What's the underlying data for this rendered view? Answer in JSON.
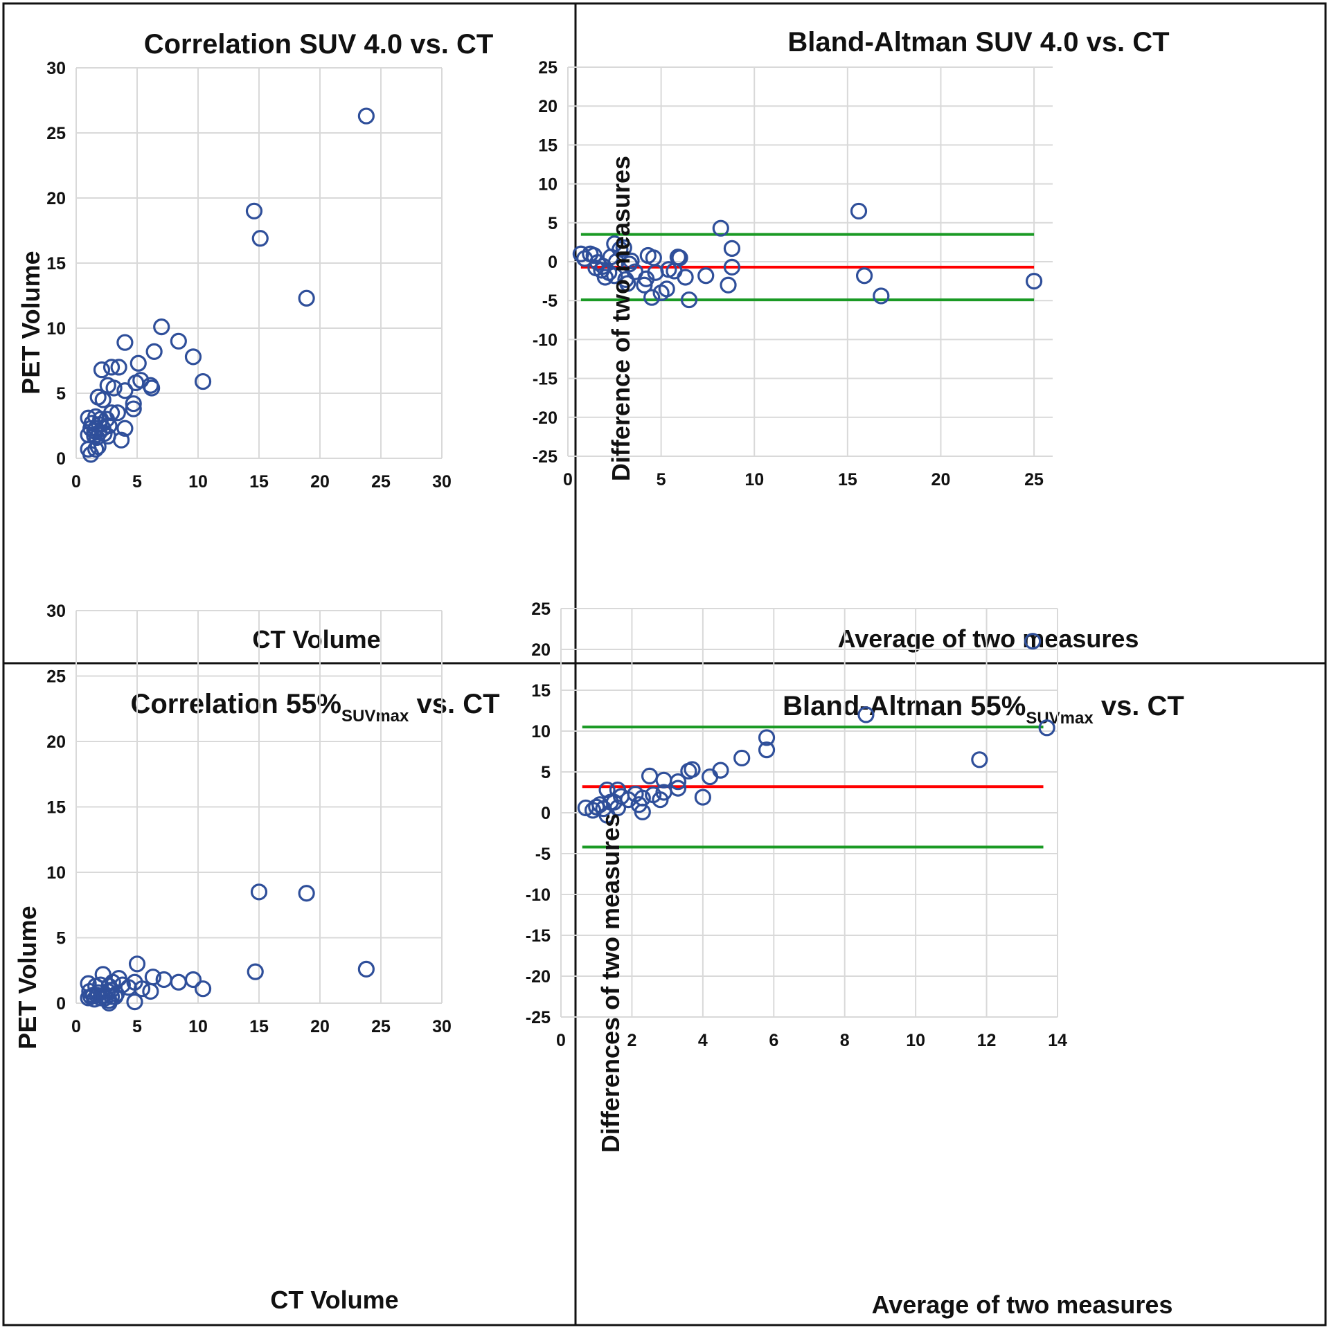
{
  "figure": {
    "background": "#ffffff",
    "marker_color": "#2f4f9a",
    "mean_color": "#ff0000",
    "loa_color": "#1a9a24"
  },
  "chart_data": [
    {
      "type": "scatter",
      "title": "Correlation SUV 4.0 vs. CT",
      "xlabel": "CT Volume",
      "ylabel": "PET Volume",
      "xlim": [
        0,
        30
      ],
      "ylim": [
        0,
        30
      ],
      "xticks": [
        "0",
        "5",
        "10",
        "15",
        "20",
        "25",
        "30"
      ],
      "yticks": [
        "0",
        "5",
        "10",
        "15",
        "20",
        "25",
        "30"
      ],
      "points": [
        [
          23.8,
          26.3
        ],
        [
          14.6,
          19.0
        ],
        [
          15.1,
          16.9
        ],
        [
          18.9,
          12.3
        ],
        [
          7.0,
          10.1
        ],
        [
          8.4,
          9.0
        ],
        [
          4.0,
          8.9
        ],
        [
          9.6,
          7.8
        ],
        [
          6.4,
          8.2
        ],
        [
          5.1,
          7.3
        ],
        [
          2.1,
          6.8
        ],
        [
          2.9,
          7.0
        ],
        [
          3.5,
          7.0
        ],
        [
          10.4,
          5.9
        ],
        [
          6.1,
          5.6
        ],
        [
          6.2,
          5.4
        ],
        [
          5.3,
          6.0
        ],
        [
          4.9,
          5.8
        ],
        [
          2.6,
          5.6
        ],
        [
          3.1,
          5.4
        ],
        [
          4.0,
          5.2
        ],
        [
          1.8,
          4.7
        ],
        [
          2.2,
          4.5
        ],
        [
          4.7,
          4.2
        ],
        [
          4.7,
          3.8
        ],
        [
          2.9,
          3.5
        ],
        [
          3.4,
          3.5
        ],
        [
          1.0,
          3.1
        ],
        [
          1.6,
          3.2
        ],
        [
          2.0,
          3.0
        ],
        [
          2.5,
          3.0
        ],
        [
          1.3,
          2.7
        ],
        [
          1.9,
          2.6
        ],
        [
          1.2,
          2.3
        ],
        [
          1.6,
          2.3
        ],
        [
          2.2,
          2.3
        ],
        [
          2.7,
          2.5
        ],
        [
          4.0,
          2.3
        ],
        [
          1.5,
          2.1
        ],
        [
          1.9,
          2.0
        ],
        [
          2.3,
          1.9
        ],
        [
          1.0,
          1.8
        ],
        [
          1.5,
          1.7
        ],
        [
          1.7,
          1.6
        ],
        [
          2.6,
          1.7
        ],
        [
          3.7,
          1.4
        ],
        [
          1.8,
          0.9
        ],
        [
          1.6,
          0.7
        ],
        [
          1.0,
          0.7
        ],
        [
          1.2,
          0.3
        ]
      ]
    },
    {
      "type": "scatter",
      "subtype": "bland-altman",
      "title": "Bland-Altman SUV 4.0 vs. CT",
      "xlabel": "Average of two measures",
      "ylabel": "Difference of two measures",
      "xlim": [
        0,
        26
      ],
      "ylim": [
        -25,
        25
      ],
      "xticks": [
        "0",
        "5",
        "10",
        "15",
        "20",
        "25"
      ],
      "yticks": [
        "25",
        "20",
        "15",
        "10",
        "5",
        "0",
        "-5",
        "-10",
        "-15",
        "-20",
        "-25"
      ],
      "mean_difference": -0.7,
      "limits_of_agreement": [
        3.5,
        -4.9
      ],
      "lines_x_range": [
        0.7,
        25.0
      ],
      "points": [
        [
          0.7,
          1.0
        ],
        [
          0.9,
          0.4
        ],
        [
          1.2,
          1.0
        ],
        [
          1.4,
          0.8
        ],
        [
          1.6,
          -0.1
        ],
        [
          1.5,
          -0.8
        ],
        [
          1.8,
          -1.1
        ],
        [
          1.9,
          -0.6
        ],
        [
          2.0,
          -2.0
        ],
        [
          2.2,
          -1.4
        ],
        [
          2.3,
          0.6
        ],
        [
          2.5,
          -1.8
        ],
        [
          2.5,
          2.3
        ],
        [
          2.6,
          0.0
        ],
        [
          2.8,
          1.6
        ],
        [
          3.0,
          1.8
        ],
        [
          3.1,
          -2.3
        ],
        [
          3.2,
          -2.8
        ],
        [
          3.3,
          -0.3
        ],
        [
          3.4,
          0.1
        ],
        [
          3.6,
          -1.3
        ],
        [
          4.1,
          -3.0
        ],
        [
          4.2,
          -2.2
        ],
        [
          4.3,
          0.8
        ],
        [
          4.5,
          -4.6
        ],
        [
          4.6,
          0.5
        ],
        [
          4.7,
          -1.4
        ],
        [
          5.0,
          -4.0
        ],
        [
          5.3,
          -3.5
        ],
        [
          5.4,
          -1.0
        ],
        [
          5.7,
          -1.2
        ],
        [
          5.9,
          0.6
        ],
        [
          6.0,
          0.5
        ],
        [
          6.3,
          -2.0
        ],
        [
          6.5,
          -4.9
        ],
        [
          7.4,
          -1.8
        ],
        [
          8.2,
          4.3
        ],
        [
          8.6,
          -3.0
        ],
        [
          8.8,
          1.7
        ],
        [
          8.8,
          -0.7
        ],
        [
          15.6,
          6.5
        ],
        [
          15.9,
          -1.8
        ],
        [
          16.8,
          -4.4
        ],
        [
          25.0,
          -2.5
        ]
      ]
    },
    {
      "type": "scatter",
      "title": "Correlation 55%",
      "title_subscript": "SUVmax",
      "title_suffix": " vs. CT",
      "xlabel": "CT Volume",
      "ylabel": "PET Volume",
      "xlim": [
        0,
        30
      ],
      "ylim": [
        0,
        30
      ],
      "xticks": [
        "0",
        "5",
        "10",
        "15",
        "20",
        "25",
        "30"
      ],
      "yticks": [
        "0",
        "5",
        "10",
        "15",
        "20",
        "25",
        "30"
      ],
      "points": [
        [
          15.0,
          8.5
        ],
        [
          18.9,
          8.4
        ],
        [
          23.8,
          2.6
        ],
        [
          14.7,
          2.4
        ],
        [
          5.0,
          3.0
        ],
        [
          2.2,
          2.2
        ],
        [
          6.3,
          2.0
        ],
        [
          7.2,
          1.8
        ],
        [
          8.4,
          1.6
        ],
        [
          9.6,
          1.8
        ],
        [
          10.4,
          1.1
        ],
        [
          3.5,
          1.9
        ],
        [
          4.8,
          1.6
        ],
        [
          1.0,
          1.5
        ],
        [
          1.6,
          1.3
        ],
        [
          2.0,
          1.4
        ],
        [
          2.7,
          1.3
        ],
        [
          3.0,
          1.6
        ],
        [
          3.8,
          1.4
        ],
        [
          4.3,
          1.2
        ],
        [
          5.4,
          1.1
        ],
        [
          6.1,
          0.9
        ],
        [
          1.1,
          0.9
        ],
        [
          1.4,
          0.6
        ],
        [
          1.8,
          0.8
        ],
        [
          2.3,
          0.6
        ],
        [
          2.6,
          0.9
        ],
        [
          2.9,
          1.0
        ],
        [
          3.3,
          0.7
        ],
        [
          1.0,
          0.4
        ],
        [
          1.5,
          0.3
        ],
        [
          2.0,
          0.4
        ],
        [
          2.4,
          0.4
        ],
        [
          2.7,
          0.2
        ],
        [
          3.2,
          0.5
        ],
        [
          4.8,
          0.1
        ],
        [
          2.7,
          0.0
        ],
        [
          1.2,
          0.5
        ],
        [
          1.7,
          0.6
        ],
        [
          2.9,
          0.5
        ]
      ]
    },
    {
      "type": "scatter",
      "subtype": "bland-altman",
      "title": "Bland-Altman 55%",
      "title_subscript": "SUVmax",
      "title_suffix": " vs. CT",
      "xlabel": "Average of two measures",
      "ylabel": "Differences of two measures",
      "xlim": [
        0,
        14
      ],
      "ylim": [
        -25,
        25
      ],
      "xticks": [
        "0",
        "2",
        "4",
        "6",
        "8",
        "10",
        "12",
        "14"
      ],
      "yticks": [
        "25",
        "20",
        "15",
        "10",
        "5",
        "0",
        "-5",
        "-10",
        "-15",
        "-20",
        "-25"
      ],
      "mean_difference": 3.2,
      "limits_of_agreement": [
        10.5,
        -4.2
      ],
      "lines_x_range": [
        0.6,
        13.6
      ],
      "points": [
        [
          13.3,
          21.0
        ],
        [
          8.6,
          12.0
        ],
        [
          13.7,
          10.4
        ],
        [
          5.8,
          9.2
        ],
        [
          5.8,
          7.7
        ],
        [
          11.8,
          6.5
        ],
        [
          5.1,
          6.7
        ],
        [
          4.5,
          5.2
        ],
        [
          3.6,
          5.1
        ],
        [
          3.7,
          5.3
        ],
        [
          4.2,
          4.4
        ],
        [
          2.5,
          4.5
        ],
        [
          2.9,
          4.0
        ],
        [
          3.3,
          3.8
        ],
        [
          3.3,
          3.0
        ],
        [
          2.6,
          2.2
        ],
        [
          2.9,
          2.5
        ],
        [
          2.1,
          2.3
        ],
        [
          2.3,
          1.8
        ],
        [
          1.6,
          2.8
        ],
        [
          1.3,
          2.8
        ],
        [
          1.7,
          2.0
        ],
        [
          1.9,
          1.6
        ],
        [
          2.8,
          1.6
        ],
        [
          4.0,
          1.9
        ],
        [
          1.4,
          1.3
        ],
        [
          1.5,
          1.3
        ],
        [
          2.2,
          1.0
        ],
        [
          1.1,
          1.0
        ],
        [
          1.2,
          0.5
        ],
        [
          0.9,
          0.3
        ],
        [
          0.7,
          0.6
        ],
        [
          1.0,
          0.7
        ],
        [
          1.6,
          0.6
        ],
        [
          1.3,
          -0.3
        ],
        [
          2.3,
          0.1
        ]
      ]
    }
  ]
}
